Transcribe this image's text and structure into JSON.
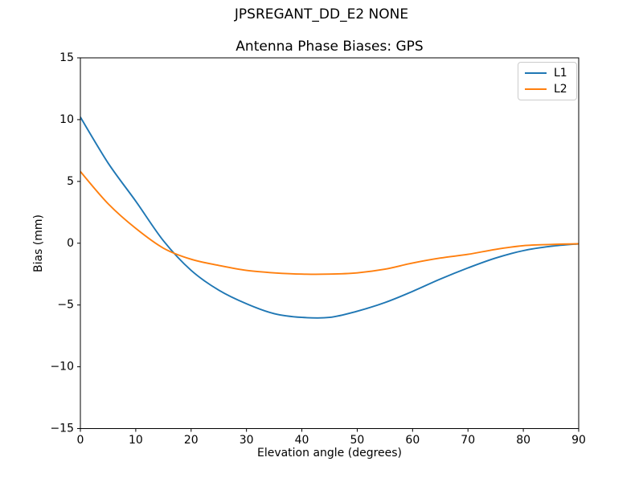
{
  "figure": {
    "suptitle": "JPSREGANT_DD_E2 NONE"
  },
  "chart_data": {
    "type": "line",
    "title": "Antenna Phase Biases: GPS",
    "suptitle": "JPSREGANT_DD_E2 NONE",
    "xlabel": "Elevation angle (degrees)",
    "ylabel": "Bias (mm)",
    "xlim": [
      0,
      90
    ],
    "ylim": [
      -15,
      15
    ],
    "xticks": [
      0,
      10,
      20,
      30,
      40,
      50,
      60,
      70,
      80,
      90
    ],
    "yticks": [
      -15,
      -10,
      -5,
      0,
      5,
      10,
      15
    ],
    "grid": false,
    "legend_position": "upper right",
    "frame": true,
    "x": [
      0,
      5,
      10,
      15,
      20,
      25,
      30,
      35,
      40,
      45,
      50,
      55,
      60,
      65,
      70,
      75,
      80,
      85,
      90
    ],
    "series": [
      {
        "name": "L1",
        "color": "#1f77b4",
        "values": [
          10.2,
          6.5,
          3.4,
          0.2,
          -2.2,
          -3.8,
          -4.9,
          -5.7,
          -6.0,
          -6.0,
          -5.5,
          -4.8,
          -3.9,
          -2.9,
          -2.0,
          -1.2,
          -0.6,
          -0.25,
          -0.05
        ]
      },
      {
        "name": "L2",
        "color": "#ff7f0e",
        "values": [
          5.8,
          3.2,
          1.2,
          -0.4,
          -1.3,
          -1.8,
          -2.2,
          -2.4,
          -2.5,
          -2.5,
          -2.4,
          -2.1,
          -1.6,
          -1.2,
          -0.9,
          -0.5,
          -0.2,
          -0.1,
          -0.05
        ]
      }
    ]
  }
}
